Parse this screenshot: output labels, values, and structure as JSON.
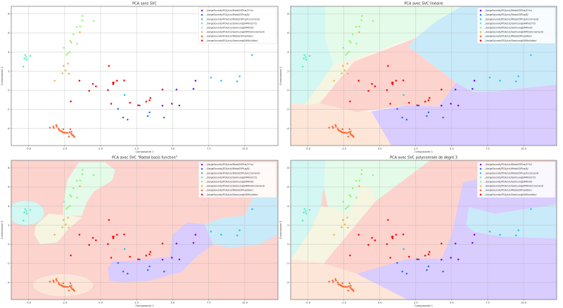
{
  "chart_data": [
    {
      "type": "scatter",
      "title": "PCA sans SVC",
      "xlabel": "Composante 1",
      "ylabel": "Composante 2",
      "xlim": [
        -6.2,
        12.3
      ],
      "ylim": [
        -5.8,
        8.8
      ],
      "xticks": [
        "-5.0",
        "-2.5",
        "0.0",
        "2.5",
        "5.0",
        "7.5",
        "10.0"
      ],
      "yticks": [
        "8",
        "6",
        "4",
        "2",
        "0",
        "-2",
        "-4"
      ],
      "grid": true,
      "legend_position": "top-right",
      "regions": "none"
    },
    {
      "type": "scatter",
      "title": "PCA avec SVC linéaire",
      "xlabel": "Composante 1",
      "ylabel": "Composante 2",
      "xlim": [
        -6.2,
        12.3
      ],
      "ylim": [
        -5.8,
        8.8
      ],
      "xticks": [
        "-5.0",
        "-2.5",
        "0.0",
        "2.5",
        "5.0",
        "7.5",
        "10.0"
      ],
      "yticks": [
        "8",
        "6",
        "4",
        "2",
        "0",
        "-2",
        "-4"
      ],
      "grid": true,
      "legend_position": "top-right",
      "regions": "linear"
    },
    {
      "type": "scatter",
      "title": "PCA avec SVC \"Radial basis function\"",
      "xlabel": "Composante 1",
      "ylabel": "Composante 2",
      "xlim": [
        -6.2,
        12.3
      ],
      "ylim": [
        -5.8,
        8.8
      ],
      "xticks": [
        "-5.0",
        "-2.5",
        "0.0",
        "2.5",
        "5.0",
        "7.5",
        "10.0"
      ],
      "yticks": [
        "8",
        "6",
        "4",
        "2",
        "0",
        "-2",
        "-4"
      ],
      "grid": true,
      "legend_position": "top-right",
      "regions": "rbf"
    },
    {
      "type": "scatter",
      "title": "PCA avec SVC polynomiale de degré 3",
      "xlabel": "Composante 1",
      "ylabel": "Composante 2",
      "xlim": [
        -6.2,
        12.3
      ],
      "ylim": [
        -5.8,
        8.8
      ],
      "xticks": [
        "-5.0",
        "-2.5",
        "0.0",
        "2.5",
        "5.0",
        "7.5",
        "10.0"
      ],
      "yticks": [
        "8",
        "6",
        "4",
        "2",
        "0",
        "-2",
        "-4"
      ],
      "grid": true,
      "legend_position": "top-right",
      "regions": "poly"
    }
  ],
  "series": [
    {
      "name": "../largeSounds/PCA/cut/MotoG5Plus/2*1c/",
      "color": "#8000ff",
      "region": "#d9ccff",
      "points": [
        [
          6.58,
          1.0
        ],
        [
          6.44,
          0.14
        ],
        [
          5.26,
          0.07
        ],
        [
          4.29,
          -1.62
        ],
        [
          4.94,
          -1.41
        ],
        [
          5.46,
          -1.6
        ]
      ]
    },
    {
      "name": "../largeSounds/PCA/cut/MotoG5Plus/8/",
      "color": "#2c6cf6",
      "region": "#cbd9fb",
      "points": [
        [
          1.21,
          -1.96
        ],
        [
          1.56,
          -2.86
        ],
        [
          1.87,
          -3.08
        ],
        [
          2.71,
          -1.6
        ],
        [
          3.39,
          -2.31
        ],
        [
          3.27,
          -2.7
        ],
        [
          4.4,
          -2.86
        ]
      ]
    },
    {
      "name": "../largeSounds/PCA/cut/MotoG5Plus/increment/",
      "color": "#1cc6e6",
      "region": "#c9eaf9",
      "points": [
        [
          1.66,
          -0.5
        ],
        [
          7.65,
          1.34
        ],
        [
          8.36,
          1.0
        ],
        [
          9.47,
          0.93
        ],
        [
          9.64,
          1.46
        ],
        [
          10.51,
          3.68
        ]
      ]
    },
    {
      "name": "../largeSounds/PCA/cut/SamsungS4Mini/2*2/",
      "color": "#4cf2c2",
      "region": "#d3f7f3",
      "points": [
        [
          -5.36,
          2.48
        ],
        [
          -5.29,
          3.32
        ],
        [
          -5.23,
          3.68
        ],
        [
          -5.15,
          3.46
        ],
        [
          -5.12,
          3.2
        ],
        [
          -4.88,
          3.6
        ]
      ]
    },
    {
      "name": "../largeSounds/PCA/cut/SamsungS4Mini/f/",
      "color": "#98f07a",
      "region": "#e4fbe9",
      "points": [
        [
          -1.25,
          7.8
        ],
        [
          -1.27,
          7.35
        ],
        [
          -0.48,
          7.26
        ],
        [
          -1.42,
          6.68
        ],
        [
          -1.64,
          6.66
        ],
        [
          -1.89,
          5.87
        ],
        [
          -2.11,
          5.16
        ],
        [
          -2.03,
          5.01
        ],
        [
          -1.63,
          4.87
        ],
        [
          -2.55,
          4.46
        ],
        [
          -2.14,
          4.03
        ],
        [
          -2.26,
          3.87
        ],
        [
          -2.37,
          3.72
        ]
      ]
    },
    {
      "name": "../largeSounds/PCA/cut/SamsungS4Mini/increment/",
      "color": "#ecb54a",
      "region": "#f5f5e1",
      "points": [
        [
          -1.44,
          6.09
        ],
        [
          -2.57,
          2.55
        ],
        [
          -2.26,
          2.79
        ],
        [
          -2.43,
          2.08
        ],
        [
          -2.65,
          1.77
        ],
        [
          -2.21,
          1.74
        ],
        [
          -3.19,
          1.0
        ]
      ]
    },
    {
      "name": "../largeSounds/PCA/cut/MotoG5Plus/idler/",
      "color": "#ff6730",
      "region": "#fde6d8",
      "points": [
        [
          -3.52,
          -3.92
        ],
        [
          -3.28,
          -3.8
        ],
        [
          -3.25,
          -3.96
        ],
        [
          -3.08,
          -3.65
        ],
        [
          -3.05,
          -3.82
        ],
        [
          -2.92,
          -4.0
        ],
        [
          -2.88,
          -4.18
        ],
        [
          -2.8,
          -4.25
        ],
        [
          -2.72,
          -4.3
        ],
        [
          -2.65,
          -4.38
        ],
        [
          -2.58,
          -4.42
        ],
        [
          -2.6,
          -4.08
        ],
        [
          -2.5,
          -4.45
        ],
        [
          -2.4,
          -4.45
        ],
        [
          -2.28,
          -4.48
        ],
        [
          -2.2,
          -4.85
        ],
        [
          -2.15,
          -4.4
        ],
        [
          -2.1,
          -4.08
        ],
        [
          -2.05,
          -4.55
        ],
        [
          -2.02,
          -4.35
        ],
        [
          -1.98,
          -4.68
        ],
        [
          -1.92,
          -4.72
        ],
        [
          -1.88,
          -4.8
        ],
        [
          -1.82,
          -4.9
        ]
      ]
    },
    {
      "name": "../largeSounds/PCA/cut/SamsungS4Mini/idler/",
      "color": "#ff0000",
      "region": "#fdd3ce",
      "points": [
        [
          0.57,
          2.55
        ],
        [
          -1.47,
          1.0
        ],
        [
          -0.54,
          0.67
        ],
        [
          -0.33,
          0.41
        ],
        [
          -0.79,
          -0.07
        ],
        [
          0.5,
          0.02
        ],
        [
          0.85,
          0.79
        ],
        [
          0.9,
          0.81
        ],
        [
          0.88,
          0.64
        ],
        [
          1.13,
          1.0
        ],
        [
          1.63,
          1.03
        ],
        [
          -2.07,
          -1.17
        ],
        [
          0.73,
          -1.41
        ],
        [
          2.03,
          -1.31
        ],
        [
          2.6,
          -1.58
        ],
        [
          3.16,
          -1.19
        ],
        [
          3.39,
          -1.05
        ],
        [
          3.45,
          -0.81
        ],
        [
          4.29,
          0.07
        ]
      ]
    }
  ]
}
